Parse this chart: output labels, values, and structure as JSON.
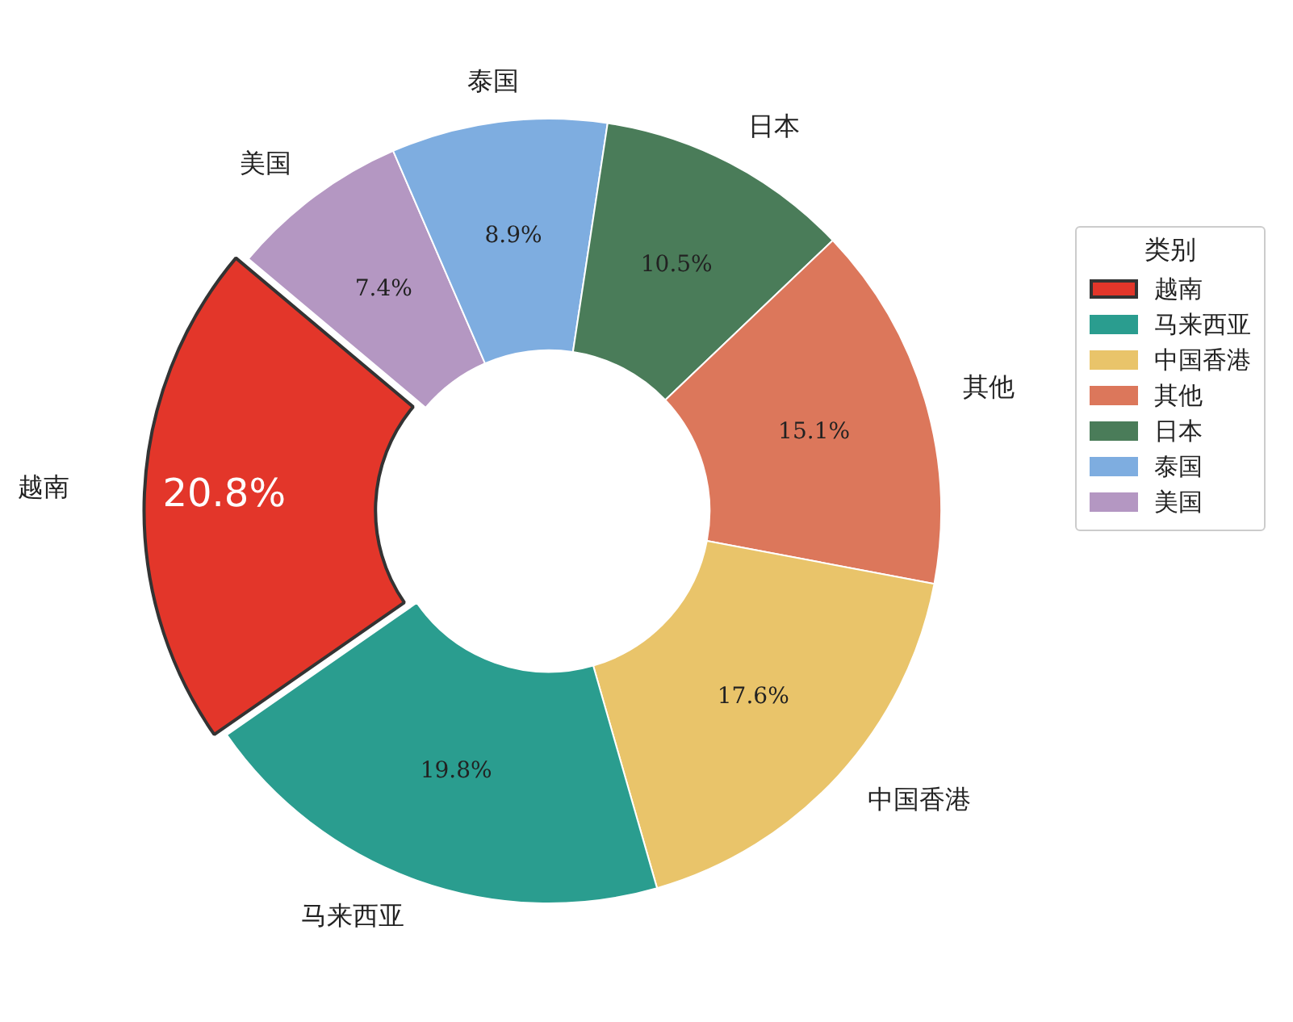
{
  "chart_data": {
    "type": "donut",
    "legend_title": "类别",
    "legend": "right",
    "categories": [
      "越南",
      "马来西亚",
      "中国香港",
      "其他",
      "日本",
      "泰国",
      "美国"
    ],
    "values": [
      20.8,
      19.8,
      17.6,
      15.1,
      10.5,
      8.9,
      7.4
    ],
    "colors": [
      "#e3362a",
      "#2a9d8f",
      "#e9c46a",
      "#dc775b",
      "#4a7c59",
      "#7eade0",
      "#b497c2"
    ],
    "value_labels": [
      "20.8%",
      "19.8%",
      "17.6%",
      "15.1%",
      "10.5%",
      "8.9%",
      "7.4%"
    ]
  }
}
